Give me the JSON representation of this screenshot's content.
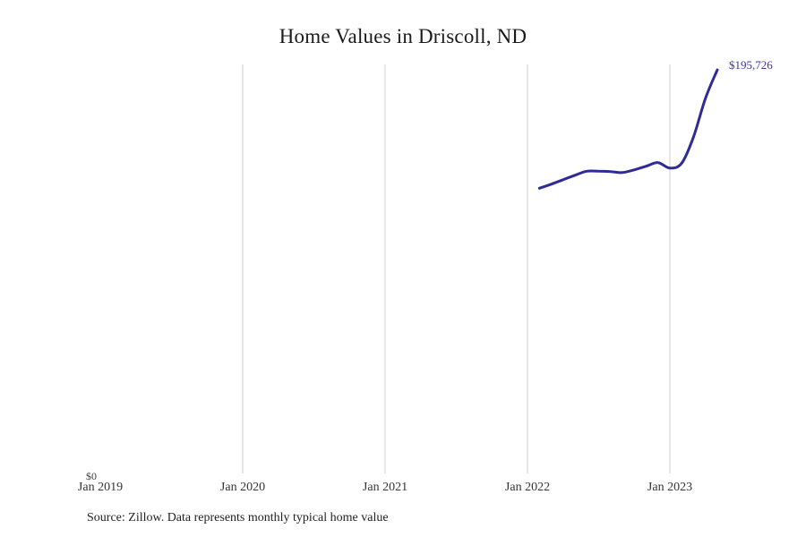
{
  "chart": {
    "title": "Home Values in Driscoll, ND",
    "end_value_label": "$195,726",
    "y_axis_zero_label": "$0",
    "source_note": "Source: Zillow. Data represents monthly typical home value",
    "colors": {
      "line": "#2e2b94",
      "end_label": "#3a3799",
      "gridline": "#cdcdcd"
    },
    "x_ticks": [
      {
        "label": "Jan 2019"
      },
      {
        "label": "Jan 2020"
      },
      {
        "label": "Jan 2021"
      },
      {
        "label": "Jan 2022"
      },
      {
        "label": "Jan 2023"
      }
    ]
  },
  "chart_data": {
    "type": "line",
    "title": "Home Values in Driscoll, ND",
    "x": [
      "Feb 2022",
      "Mar 2022",
      "Apr 2022",
      "May 2022",
      "Jun 2022",
      "Jul 2022",
      "Aug 2022",
      "Sep 2022",
      "Oct 2022",
      "Nov 2022",
      "Dec 2022",
      "Jan 2023",
      "Feb 2023",
      "Mar 2023",
      "Apr 2023",
      "May 2023"
    ],
    "values": [
      138800,
      140750,
      142900,
      145050,
      147000,
      147000,
      146800,
      146350,
      147650,
      149400,
      151100,
      148500,
      150900,
      163600,
      182100,
      195726
    ],
    "xlabel": "",
    "ylabel": "",
    "ylim": [
      0,
      195726
    ],
    "x_axis_ticks": [
      "Jan 2019",
      "Jan 2020",
      "Jan 2021",
      "Jan 2022",
      "Jan 2023"
    ],
    "grid": "vertical-only",
    "legend": "none",
    "annotations": [
      {
        "text": "$195,726",
        "position": "line-end"
      },
      {
        "text": "$0",
        "position": "y-axis-origin"
      }
    ]
  }
}
